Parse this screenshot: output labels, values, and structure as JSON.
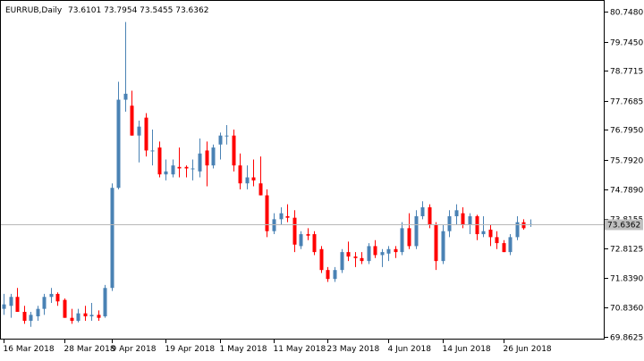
{
  "header": {
    "symbol_timeframe": "EURRUB,Daily",
    "ohlc": "73.6101 73.7954 73.5455 73.6362"
  },
  "colors": {
    "bull": "#4a82b4",
    "bear": "#ff0000",
    "current_line": "#b8b8b8",
    "price_tag_bg": "#c0c0c0"
  },
  "chart_data": {
    "type": "candlestick",
    "ylim": [
      69.8625,
      80.748
    ],
    "y_ticks": [
      "80.7480",
      "79.7450",
      "78.7715",
      "77.7685",
      "76.7950",
      "75.7920",
      "74.7890",
      "73.8155",
      "72.8125",
      "71.8390",
      "70.8360",
      "69.8625"
    ],
    "x_tick_labels": [
      "16 Mar 2018",
      "28 Mar 2018",
      "9 Apr 2018",
      "19 Apr 2018",
      "1 May 2018",
      "11 May 2018",
      "23 May 2018",
      "4 Jun 2018",
      "14 Jun 2018",
      "26 Jun 2018"
    ],
    "current_price": "73.6362",
    "candles": [
      {
        "date": "16 Mar 2018",
        "o": 70.8,
        "h": 71.3,
        "l": 70.6,
        "c": 70.95
      },
      {
        "o": 70.9,
        "h": 71.3,
        "l": 70.5,
        "c": 71.2
      },
      {
        "o": 71.2,
        "h": 71.5,
        "l": 70.7,
        "c": 70.7
      },
      {
        "o": 70.7,
        "h": 70.9,
        "l": 70.3,
        "c": 70.4
      },
      {
        "o": 70.4,
        "h": 70.7,
        "l": 70.2,
        "c": 70.6
      },
      {
        "o": 70.55,
        "h": 70.9,
        "l": 70.4,
        "c": 70.8
      },
      {
        "o": 70.8,
        "h": 71.3,
        "l": 70.6,
        "c": 71.2
      },
      {
        "o": 71.2,
        "h": 71.5,
        "l": 71.0,
        "c": 71.3
      },
      {
        "o": 71.3,
        "h": 71.35,
        "l": 70.9,
        "c": 71.05
      },
      {
        "date": "28 Mar 2018",
        "o": 71.1,
        "h": 71.15,
        "l": 70.5,
        "c": 70.5
      },
      {
        "o": 70.5,
        "h": 70.8,
        "l": 70.3,
        "c": 70.4
      },
      {
        "o": 70.4,
        "h": 70.8,
        "l": 70.35,
        "c": 70.65
      },
      {
        "o": 70.65,
        "h": 70.9,
        "l": 70.4,
        "c": 70.55
      },
      {
        "o": 70.55,
        "h": 71.0,
        "l": 70.4,
        "c": 70.6
      },
      {
        "o": 70.6,
        "h": 70.75,
        "l": 70.4,
        "c": 70.5
      },
      {
        "o": 70.55,
        "h": 71.6,
        "l": 70.5,
        "c": 71.5
      },
      {
        "date": "9 Apr 2018",
        "o": 71.5,
        "h": 75.0,
        "l": 71.4,
        "c": 74.85
      },
      {
        "o": 74.85,
        "h": 78.4,
        "l": 74.8,
        "c": 77.8
      },
      {
        "o": 77.8,
        "h": 80.4,
        "l": 77.4,
        "c": 78.0
      },
      {
        "o": 77.6,
        "h": 78.1,
        "l": 76.6,
        "c": 76.6
      },
      {
        "o": 76.6,
        "h": 77.1,
        "l": 75.7,
        "c": 76.9
      },
      {
        "o": 77.2,
        "h": 77.35,
        "l": 75.9,
        "c": 76.1
      },
      {
        "o": 76.1,
        "h": 76.8,
        "l": 75.6,
        "c": 76.1
      },
      {
        "o": 76.2,
        "h": 76.4,
        "l": 75.2,
        "c": 75.3
      },
      {
        "date": "19 Apr 2018",
        "o": 75.3,
        "h": 75.8,
        "l": 75.1,
        "c": 75.4
      },
      {
        "o": 75.3,
        "h": 75.8,
        "l": 75.2,
        "c": 75.6
      },
      {
        "o": 75.55,
        "h": 76.2,
        "l": 75.2,
        "c": 75.5
      },
      {
        "o": 75.55,
        "h": 75.6,
        "l": 75.2,
        "c": 75.5
      },
      {
        "o": 75.5,
        "h": 75.8,
        "l": 75.1,
        "c": 75.5
      },
      {
        "o": 75.4,
        "h": 76.5,
        "l": 75.2,
        "c": 76.0
      },
      {
        "o": 76.1,
        "h": 76.4,
        "l": 74.9,
        "c": 75.6
      },
      {
        "o": 75.6,
        "h": 76.3,
        "l": 75.5,
        "c": 76.2
      },
      {
        "date": "1 May 2018",
        "o": 76.3,
        "h": 76.7,
        "l": 75.8,
        "c": 76.6
      },
      {
        "o": 76.6,
        "h": 76.95,
        "l": 76.3,
        "c": 76.6
      },
      {
        "o": 76.6,
        "h": 76.8,
        "l": 75.4,
        "c": 75.6
      },
      {
        "o": 75.6,
        "h": 76.0,
        "l": 74.8,
        "c": 75.0
      },
      {
        "o": 75.0,
        "h": 75.6,
        "l": 74.8,
        "c": 75.2
      },
      {
        "o": 75.2,
        "h": 75.8,
        "l": 74.9,
        "c": 75.1
      },
      {
        "o": 75.0,
        "h": 75.9,
        "l": 74.6,
        "c": 74.6
      },
      {
        "o": 74.6,
        "h": 74.8,
        "l": 73.2,
        "c": 73.4
      },
      {
        "date": "11 May 2018",
        "o": 73.4,
        "h": 74.0,
        "l": 73.3,
        "c": 73.8
      },
      {
        "o": 73.8,
        "h": 74.2,
        "l": 73.6,
        "c": 74.0
      },
      {
        "o": 73.9,
        "h": 74.3,
        "l": 73.7,
        "c": 73.85
      },
      {
        "o": 73.85,
        "h": 74.1,
        "l": 72.7,
        "c": 72.95
      },
      {
        "o": 72.9,
        "h": 73.4,
        "l": 72.8,
        "c": 73.3
      },
      {
        "o": 73.3,
        "h": 73.5,
        "l": 73.1,
        "c": 73.25
      },
      {
        "o": 73.3,
        "h": 73.4,
        "l": 72.6,
        "c": 72.7
      },
      {
        "o": 72.8,
        "h": 72.9,
        "l": 72.0,
        "c": 72.1
      },
      {
        "date": "23 May 2018",
        "o": 72.1,
        "h": 72.2,
        "l": 71.7,
        "c": 71.8
      },
      {
        "o": 71.8,
        "h": 72.2,
        "l": 71.7,
        "c": 72.1
      },
      {
        "o": 72.1,
        "h": 72.8,
        "l": 72.0,
        "c": 72.7
      },
      {
        "o": 72.7,
        "h": 73.05,
        "l": 72.4,
        "c": 72.55
      },
      {
        "o": 72.55,
        "h": 72.7,
        "l": 72.2,
        "c": 72.5
      },
      {
        "o": 72.5,
        "h": 72.7,
        "l": 72.3,
        "c": 72.4
      },
      {
        "o": 72.4,
        "h": 73.0,
        "l": 72.3,
        "c": 72.9
      },
      {
        "o": 72.9,
        "h": 73.1,
        "l": 72.5,
        "c": 72.6
      },
      {
        "o": 72.6,
        "h": 72.8,
        "l": 72.2,
        "c": 72.7
      },
      {
        "date": "4 Jun 2018",
        "o": 72.65,
        "h": 72.9,
        "l": 72.4,
        "c": 72.8
      },
      {
        "o": 72.8,
        "h": 72.9,
        "l": 72.5,
        "c": 72.7
      },
      {
        "o": 72.7,
        "h": 73.7,
        "l": 72.6,
        "c": 73.5
      },
      {
        "o": 73.5,
        "h": 74.0,
        "l": 72.8,
        "c": 72.9
      },
      {
        "o": 72.9,
        "h": 74.1,
        "l": 72.8,
        "c": 73.9
      },
      {
        "o": 73.9,
        "h": 74.4,
        "l": 73.8,
        "c": 74.2
      },
      {
        "o": 74.2,
        "h": 74.3,
        "l": 73.5,
        "c": 73.6
      },
      {
        "o": 73.6,
        "h": 73.7,
        "l": 72.1,
        "c": 72.4
      },
      {
        "date": "14 Jun 2018",
        "o": 72.4,
        "h": 73.6,
        "l": 72.3,
        "c": 73.4
      },
      {
        "o": 73.4,
        "h": 74.1,
        "l": 73.2,
        "c": 73.9
      },
      {
        "o": 73.9,
        "h": 74.3,
        "l": 73.6,
        "c": 74.1
      },
      {
        "o": 74.0,
        "h": 74.2,
        "l": 73.5,
        "c": 73.6
      },
      {
        "o": 73.6,
        "h": 74.0,
        "l": 73.3,
        "c": 73.9
      },
      {
        "o": 73.9,
        "h": 73.95,
        "l": 73.1,
        "c": 73.3
      },
      {
        "o": 73.3,
        "h": 73.9,
        "l": 73.2,
        "c": 73.4
      },
      {
        "o": 73.45,
        "h": 73.6,
        "l": 72.9,
        "c": 73.2
      },
      {
        "o": 73.2,
        "h": 73.4,
        "l": 72.8,
        "c": 73.0
      },
      {
        "date": "26 Jun 2018",
        "o": 73.0,
        "h": 73.1,
        "l": 72.7,
        "c": 72.7
      },
      {
        "o": 72.7,
        "h": 73.3,
        "l": 72.6,
        "c": 73.2
      },
      {
        "o": 73.2,
        "h": 73.9,
        "l": 73.1,
        "c": 73.7
      },
      {
        "o": 73.7,
        "h": 73.8,
        "l": 73.45,
        "c": 73.5
      },
      {
        "o": 73.6101,
        "h": 73.7954,
        "l": 73.5455,
        "c": 73.6362
      }
    ]
  }
}
